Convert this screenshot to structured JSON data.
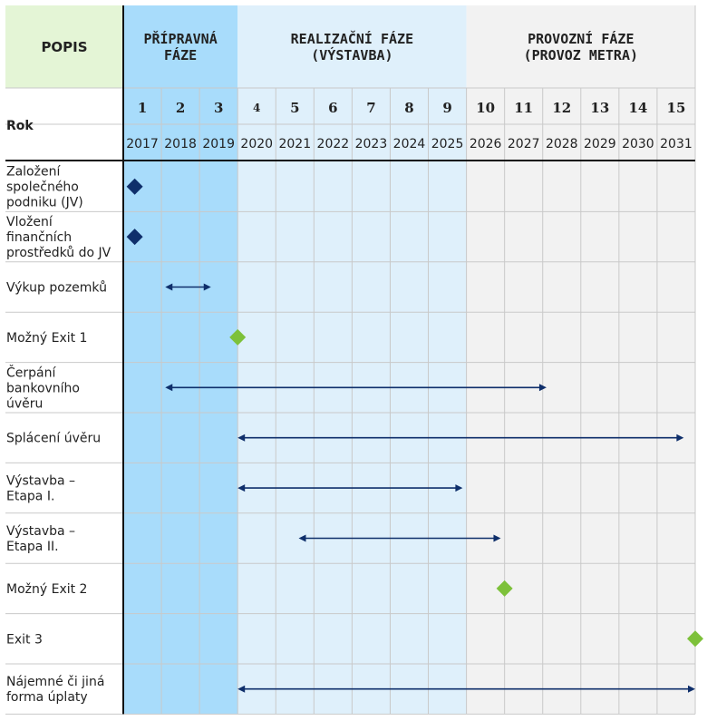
{
  "header": {
    "popis": "POPIS",
    "rok": "Rok",
    "phases": [
      {
        "id": "preparatory",
        "lines": [
          "PŘÍPRAVNÁ",
          "FÁZE"
        ],
        "from": 1,
        "to": 3,
        "color": "#a8dcfb"
      },
      {
        "id": "implementation",
        "lines": [
          "REALIZAČNÍ FÁZE",
          "(VÝSTAVBA)"
        ],
        "from": 4,
        "to": 9,
        "color": "#dff0fb"
      },
      {
        "id": "operation",
        "lines": [
          "PROVOZNÍ FÁZE",
          "(PROVOZ METRA)"
        ],
        "from": 10,
        "to": 15,
        "color": "#f2f2f2"
      }
    ]
  },
  "colors": {
    "popis_bg": "#e4f5d6",
    "navy": "#0f2f6b",
    "green": "#7dc13a",
    "grid": "#c9c9c9",
    "border": "#111111"
  },
  "chart_data": {
    "type": "table",
    "columns": [
      {
        "index": "1",
        "year": "2017"
      },
      {
        "index": "2",
        "year": "2018"
      },
      {
        "index": "3",
        "year": "2019"
      },
      {
        "index": "4",
        "year": "2020"
      },
      {
        "index": "5",
        "year": "2021"
      },
      {
        "index": "6",
        "year": "2022"
      },
      {
        "index": "7",
        "year": "2023"
      },
      {
        "index": "8",
        "year": "2024"
      },
      {
        "index": "9",
        "year": "2025"
      },
      {
        "index": "10",
        "year": "2026"
      },
      {
        "index": "11",
        "year": "2027"
      },
      {
        "index": "12",
        "year": "2028"
      },
      {
        "index": "13",
        "year": "2029"
      },
      {
        "index": "14",
        "year": "2030"
      },
      {
        "index": "15",
        "year": "2031"
      }
    ],
    "rows": [
      {
        "lines": [
          "Založení",
          "společného",
          "podniku (JV)"
        ],
        "mark": "diamond",
        "color": "navy",
        "at": 1.3
      },
      {
        "lines": [
          "Vložení",
          "finančních",
          "prostředků do JV"
        ],
        "mark": "diamond",
        "color": "navy",
        "at": 1.3
      },
      {
        "lines": [
          "Výkup pozemků"
        ],
        "mark": "arrow",
        "from": 2.1,
        "to": 3.3
      },
      {
        "lines": [
          "Možný Exit 1"
        ],
        "mark": "diamond",
        "color": "green",
        "at": 4.0
      },
      {
        "lines": [
          "Čerpání",
          "bankovního",
          "úvěru"
        ],
        "mark": "arrow",
        "from": 2.1,
        "to": 12.1
      },
      {
        "lines": [
          "Splácení úvěru"
        ],
        "mark": "arrow",
        "from": 4.0,
        "to": 15.7
      },
      {
        "lines": [
          "Výstavba –",
          "Etapa I."
        ],
        "mark": "arrow",
        "from": 4.0,
        "to": 9.9
      },
      {
        "lines": [
          "Výstavba –",
          "Etapa II."
        ],
        "mark": "arrow",
        "from": 5.6,
        "to": 10.9
      },
      {
        "lines": [
          "Možný Exit 2"
        ],
        "mark": "diamond",
        "color": "green",
        "at": 11.0
      },
      {
        "lines": [
          "Exit 3"
        ],
        "mark": "diamond",
        "color": "green",
        "at": 16.0
      },
      {
        "lines": [
          "Nájemné či jiná",
          "forma úplaty"
        ],
        "mark": "arrow",
        "from": 4.0,
        "to": 16.0
      }
    ]
  }
}
